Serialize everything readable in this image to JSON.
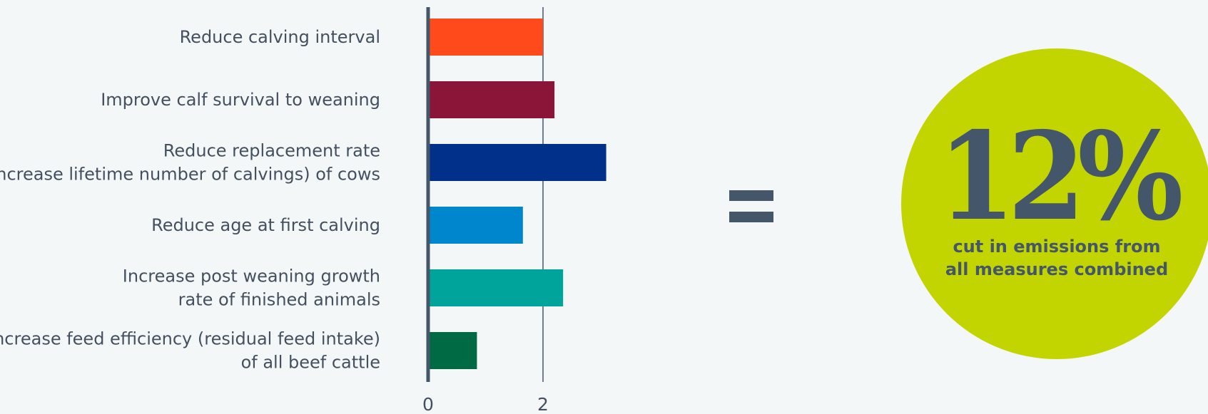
{
  "chart_data": {
    "type": "bar",
    "orientation": "horizontal",
    "categories": [
      [
        "Reduce calving interval"
      ],
      [
        "Improve calf survival to weaning"
      ],
      [
        "Reduce replacement rate",
        "(increase lifetime number of calvings) of cows"
      ],
      [
        "Reduce age at first calving"
      ],
      [
        "Increase post weaning growth",
        "rate of finished animals"
      ],
      [
        "Increase feed efficiency (residual feed intake)",
        "of all beef cattle"
      ]
    ],
    "values": [
      2.0,
      2.2,
      3.1,
      1.65,
      2.35,
      0.85
    ],
    "colors": [
      "#ff4a1c",
      "#8a1538",
      "#00308a",
      "#0086cc",
      "#00a49a",
      "#006a45"
    ],
    "x_ticks": [
      0,
      2
    ],
    "x_tick_labels": [
      "0",
      "2"
    ],
    "xlim": [
      0,
      4
    ],
    "gridlines": [
      2
    ],
    "title": "",
    "xlabel": "",
    "ylabel": ""
  },
  "equals_sign": "=",
  "callout": {
    "value": "12%",
    "caption_line1": "cut in emissions from",
    "caption_line2": "all measures combined",
    "circle_color": "#c3d500",
    "text_color": "#44576a"
  }
}
